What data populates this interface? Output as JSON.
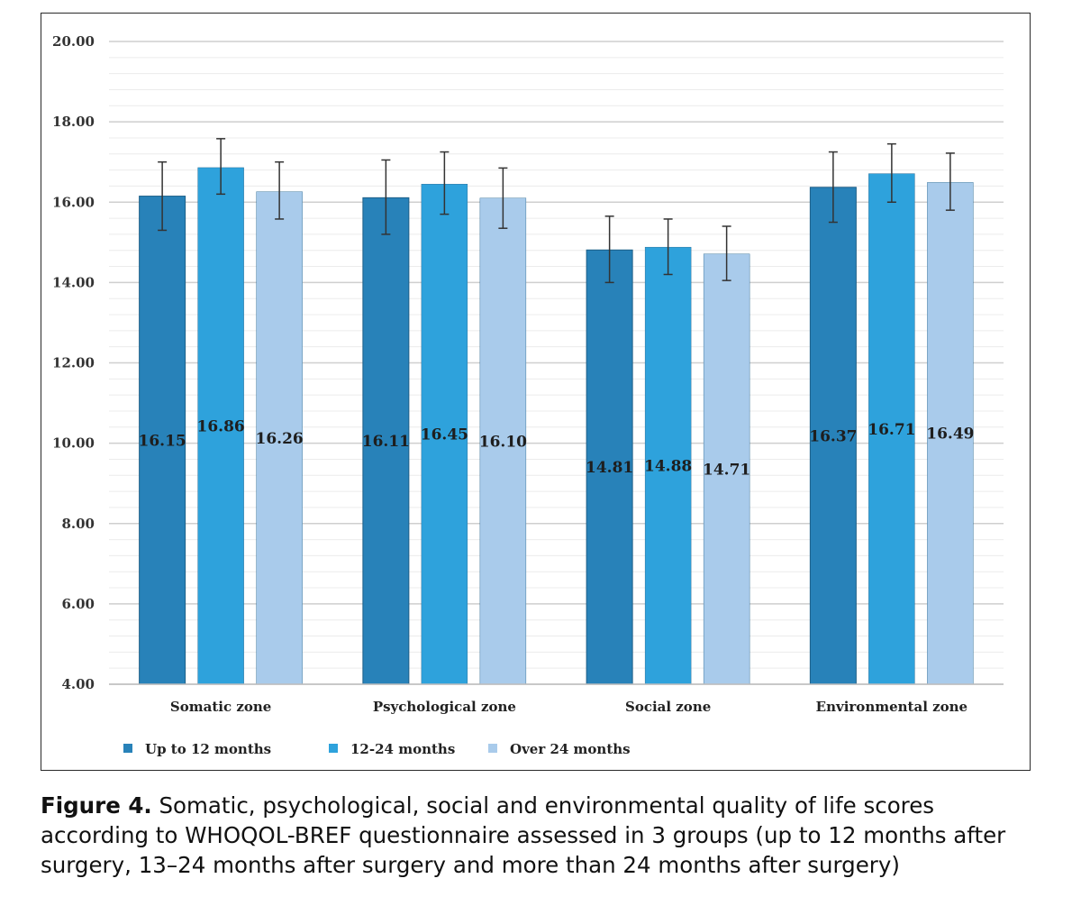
{
  "chart_data": {
    "type": "bar",
    "categories": [
      "Somatic zone",
      "Psychological zone",
      "Social zone",
      "Environmental zone"
    ],
    "series": [
      {
        "name": "Up to 12 months",
        "color": "#2882b9",
        "values": [
          16.15,
          16.11,
          14.81,
          16.37
        ],
        "labels": [
          "16.15",
          "16.11",
          "14.81",
          "16.37"
        ],
        "error_low": [
          15.3,
          15.2,
          14.0,
          15.5
        ],
        "error_high": [
          17.0,
          17.05,
          15.65,
          17.25
        ]
      },
      {
        "name": "12-24 months",
        "color": "#2ea2dc",
        "values": [
          16.86,
          16.45,
          14.88,
          16.71
        ],
        "labels": [
          "16.86",
          "16.45",
          "14.88",
          "16.71"
        ],
        "error_low": [
          16.2,
          15.7,
          14.2,
          16.0
        ],
        "error_high": [
          17.58,
          17.25,
          15.58,
          17.45
        ]
      },
      {
        "name": "Over 24 months",
        "color": "#a9cbeb",
        "values": [
          16.26,
          16.1,
          14.71,
          16.49
        ],
        "labels": [
          "16.26",
          "16.10",
          "14.71",
          "16.49"
        ],
        "error_low": [
          15.58,
          15.35,
          14.05,
          15.8
        ],
        "error_high": [
          17.0,
          16.85,
          15.4,
          17.22
        ]
      }
    ],
    "ylim": [
      4,
      20
    ],
    "yticks": [
      "4.00",
      "6.00",
      "8.00",
      "10.00",
      "12.00",
      "14.00",
      "16.00",
      "18.00",
      "20.00"
    ],
    "grid": true,
    "legend_position": "bottom-left"
  },
  "caption": {
    "label": "Figure 4.",
    "text": " Somatic, psychological, social and environmental quality of life scores according to WHOQOL-BREF questionnaire assessed in 3 groups (up to 12 months after surgery, 13–24 months after surgery and more than 24 months after surgery)"
  }
}
